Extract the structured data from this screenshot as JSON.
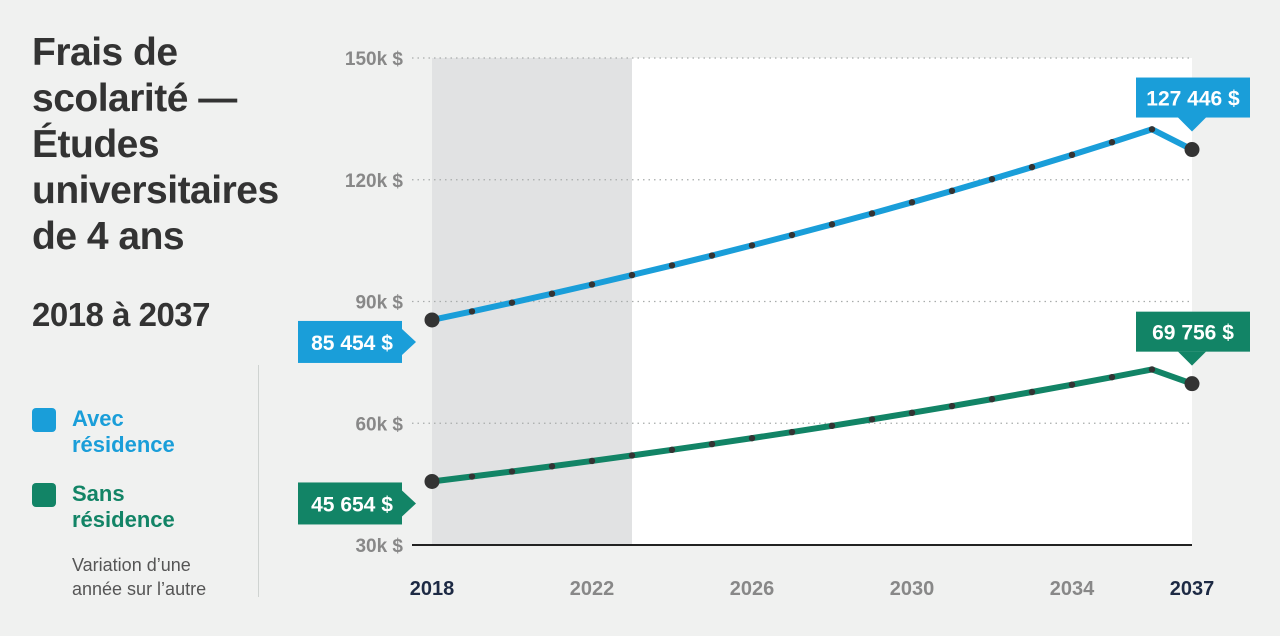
{
  "title": "Frais de\nscolarité —\nÉtudes\nuniversitaires\nde 4 ans",
  "subtitle": "2018 à 2037",
  "legend": {
    "items": [
      {
        "label": "Avec\nrésidence",
        "color": "#1a9ed9"
      },
      {
        "label": "Sans\nrésidence",
        "color": "#128466"
      }
    ],
    "note": "Variation d’une\nannée sur l’autre"
  },
  "colors": {
    "with_residence": "#1a9ed9",
    "without_residence": "#128466",
    "shaded_region": "#e1e2e3",
    "plot_background": "#ffffff",
    "point": "#333333",
    "tick_label": "#888888",
    "tick_label_emphasis": "#1d2a44"
  },
  "chart_data": {
    "type": "line",
    "x": [
      2018,
      2019,
      2020,
      2021,
      2022,
      2023,
      2024,
      2025,
      2026,
      2027,
      2028,
      2029,
      2030,
      2031,
      2032,
      2033,
      2034,
      2035,
      2036,
      2037
    ],
    "xlim": [
      2018,
      2037
    ],
    "ylim": [
      30000,
      150000
    ],
    "xticks": [
      2018,
      2022,
      2026,
      2030,
      2034,
      2037
    ],
    "xtick_labels": [
      "2018",
      "2022",
      "2026",
      "2030",
      "2034",
      "2037"
    ],
    "emphasized_xticks": [
      2018,
      2037
    ],
    "yticks": [
      30000,
      60000,
      90000,
      120000,
      150000
    ],
    "ytick_labels": [
      "30k $",
      "60k $",
      "90k $",
      "120k $",
      "150k $"
    ],
    "grid": "horizontal dotted",
    "shaded_x_range": [
      2018,
      2023
    ],
    "series": [
      {
        "name": "Avec résidence",
        "color": "#1a9ed9",
        "values": [
          85454,
          87559,
          89716,
          91927,
          94192,
          96513,
          98890,
          101327,
          103823,
          106381,
          109002,
          111688,
          114440,
          117259,
          120148,
          123109,
          126142,
          129249,
          132434,
          127446
        ],
        "start_label": "85 454 $",
        "end_label": "127 446 $"
      },
      {
        "name": "Sans résidence",
        "color": "#128466",
        "values": [
          45654,
          46870,
          48117,
          49398,
          50713,
          52062,
          53448,
          54871,
          56331,
          57830,
          59370,
          60950,
          62572,
          64238,
          65947,
          67703,
          69505,
          71354,
          73253,
          69756
        ],
        "start_label": "45 654 $",
        "end_label": "69 756 $"
      }
    ]
  }
}
